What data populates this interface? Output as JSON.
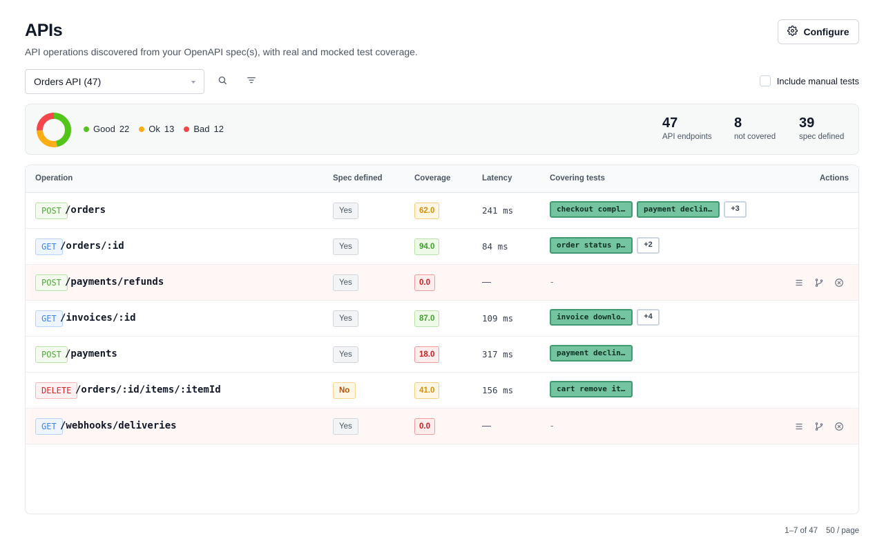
{
  "header": {
    "title": "APIs",
    "subtitle": "API operations discovered from your OpenAPI spec(s), with real and mocked test coverage.",
    "configure_label": "Configure"
  },
  "toolbar": {
    "selected_api": "Orders API (47)",
    "include_manual_label": "Include manual tests",
    "include_manual_checked": false
  },
  "summary": {
    "legend": [
      {
        "label": "Good",
        "count": "22",
        "color": "#52c41a"
      },
      {
        "label": "Ok",
        "count": "13",
        "color": "#faad14"
      },
      {
        "label": "Bad",
        "count": "12",
        "color": "#f5474b"
      }
    ],
    "stats": [
      {
        "value": "47",
        "label": "API endpoints"
      },
      {
        "value": "8",
        "label": "not covered"
      },
      {
        "value": "39",
        "label": "spec defined"
      }
    ]
  },
  "table": {
    "columns": {
      "operation": "Operation",
      "spec": "Spec defined",
      "coverage": "Coverage",
      "latency": "Latency",
      "tests": "Covering tests",
      "actions": "Actions"
    },
    "rows": [
      {
        "method": "POST",
        "path": "/orders",
        "spec": "Yes",
        "coverage": "62.0",
        "coverage_level": "orange",
        "latency": "241 ms",
        "tests": [
          "checkout compl…",
          "payment declin…"
        ],
        "more": "+3",
        "bad": false
      },
      {
        "method": "GET",
        "path": "/orders/:id",
        "spec": "Yes",
        "coverage": "94.0",
        "coverage_level": "green",
        "latency": "84 ms",
        "tests": [
          "order status p…"
        ],
        "more": "+2",
        "bad": false
      },
      {
        "method": "POST",
        "path": "/payments/refunds",
        "spec": "Yes",
        "coverage": "0.0",
        "coverage_level": "red",
        "latency": "—",
        "tests": [],
        "no_tests": "-",
        "bad": true
      },
      {
        "method": "GET",
        "path": "/invoices/:id",
        "spec": "Yes",
        "coverage": "87.0",
        "coverage_level": "green",
        "latency": "109 ms",
        "tests": [
          "invoice downlo…"
        ],
        "more": "+4",
        "bad": false
      },
      {
        "method": "POST",
        "path": "/payments",
        "spec": "Yes",
        "coverage": "18.0",
        "coverage_level": "red",
        "latency": "317 ms",
        "tests": [
          "payment declin…"
        ],
        "bad": false
      },
      {
        "method": "DELETE",
        "path": "/orders/:id/items/:itemId",
        "spec": "No",
        "coverage": "41.0",
        "coverage_level": "orange",
        "latency": "156 ms",
        "tests": [
          "cart remove it…"
        ],
        "bad": false
      },
      {
        "method": "GET",
        "path": "/webhooks/deliveries",
        "spec": "Yes",
        "coverage": "0.0",
        "coverage_level": "red",
        "latency": "—",
        "tests": [],
        "no_tests": "-",
        "bad": true
      }
    ]
  },
  "pagination": {
    "range": "1–7 of 47",
    "page_size": "50 / page"
  },
  "icons": {
    "configure": "gear-icon",
    "search": "search-icon",
    "filter": "filter-icon",
    "row_actions": [
      "list-icon",
      "branch-icon",
      "close-circle-icon"
    ]
  }
}
